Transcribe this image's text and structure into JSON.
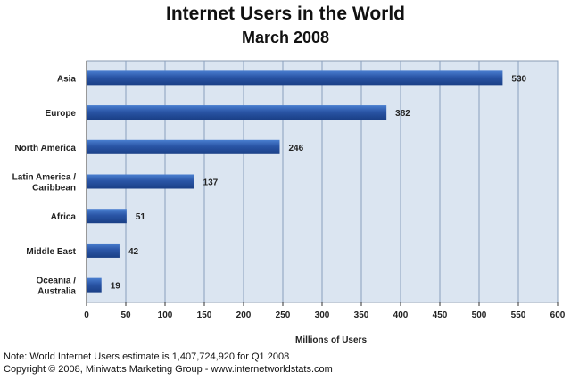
{
  "chart_data": {
    "type": "bar",
    "orientation": "horizontal",
    "title": "Internet Users in the World",
    "subtitle": "March 2008",
    "categories": [
      "Asia",
      "Europe",
      "North America",
      "Latin America / Caribbean",
      "Africa",
      "Middle East",
      "Oceania / Australia"
    ],
    "values": [
      530,
      382,
      246,
      137,
      51,
      42,
      19
    ],
    "value_labels": [
      "530",
      "382",
      "246",
      "137",
      "51",
      "42",
      "19"
    ],
    "xlabel": "Millions of Users",
    "ylabel": "",
    "xlim": [
      0,
      600
    ],
    "xticks": [
      0,
      50,
      100,
      150,
      200,
      250,
      300,
      350,
      400,
      450,
      500,
      550,
      600
    ],
    "grid": true,
    "legend": "none",
    "colors": {
      "bar": "#2a55a6",
      "bar_light": "#4a7fd0",
      "bar_dark": "#1a3f86",
      "plot_bg": "#dbe5f1",
      "grid": "#8aa0bd"
    }
  },
  "footnote": {
    "line1": "Note: World Internet Users estimate is 1,407,724,920 for Q1 2008",
    "line2": "Copyright © 2008, Miniwatts Marketing Group - www.internetworldstats.com"
  }
}
